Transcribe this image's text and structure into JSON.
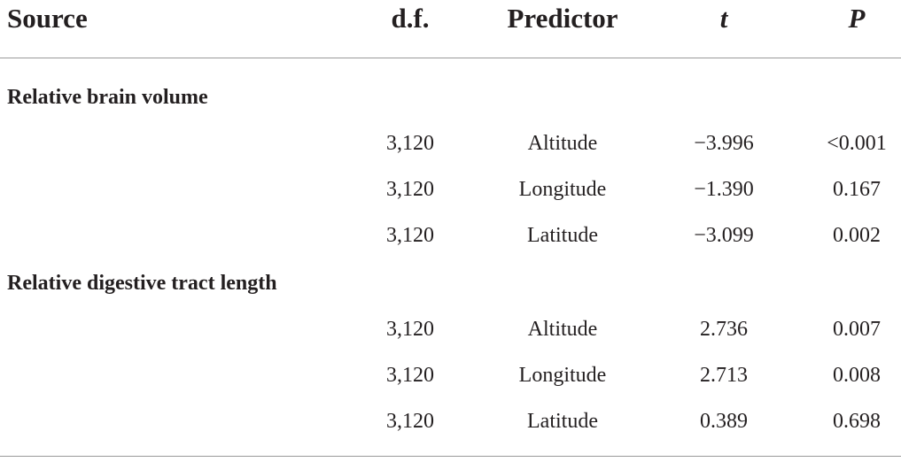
{
  "table": {
    "header": [
      "Source",
      "d.f.",
      "Predictor",
      "t",
      "P"
    ],
    "groups": [
      {
        "label": "Relative brain volume",
        "rows": [
          [
            "3,120",
            "Altitude",
            "−3.996",
            "<0.001"
          ],
          [
            "3,120",
            "Longitude",
            "−1.390",
            "0.167"
          ],
          [
            "3,120",
            "Latitude",
            "−3.099",
            "0.002"
          ]
        ]
      },
      {
        "label": "Relative digestive tract length",
        "rows": [
          [
            "3,120",
            "Altitude",
            "2.736",
            "0.007"
          ],
          [
            "3,120",
            "Longitude",
            "2.713",
            "0.008"
          ],
          [
            "3,120",
            "Latitude",
            "0.389",
            "0.698"
          ]
        ]
      }
    ]
  }
}
